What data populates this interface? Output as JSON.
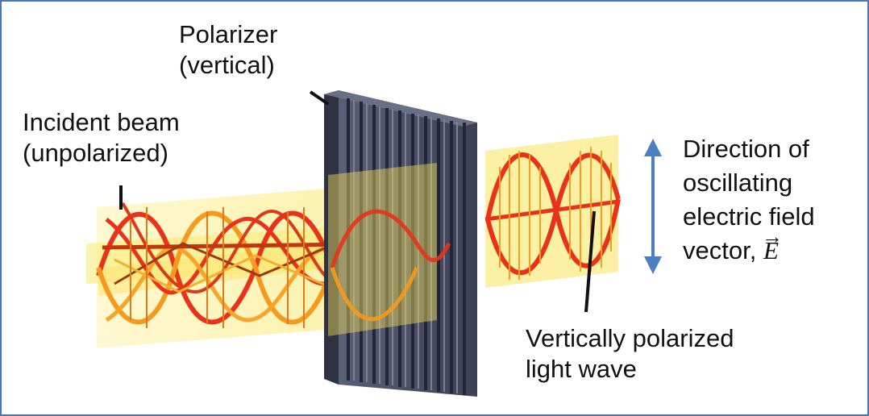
{
  "labels": {
    "polarizer_line1": "Polarizer",
    "polarizer_line2": "(vertical)",
    "incident_line1": "Incident beam",
    "incident_line2": "(unpolarized)",
    "direction_line1": "Direction of",
    "direction_line2": "oscillating",
    "direction_line3": "electric field",
    "direction_line4_prefix": "vector, ",
    "direction_line4_symbol": "E",
    "direction_line4_arrow": "⃗",
    "polarized_line1": "Vertically polarized",
    "polarized_line2": "light wave"
  },
  "colors": {
    "frame_border": "#4a76b6",
    "wave_red": "#e8321a",
    "wave_orange": "#f59a1e",
    "beam_yellow": "#f7e35a",
    "polarizer_grey": "#4b4f63",
    "arrow_blue": "#4a7fc1",
    "leader_line": "#111111"
  },
  "icons": {
    "direction_arrow": "double-headed-vertical-arrow-icon"
  }
}
